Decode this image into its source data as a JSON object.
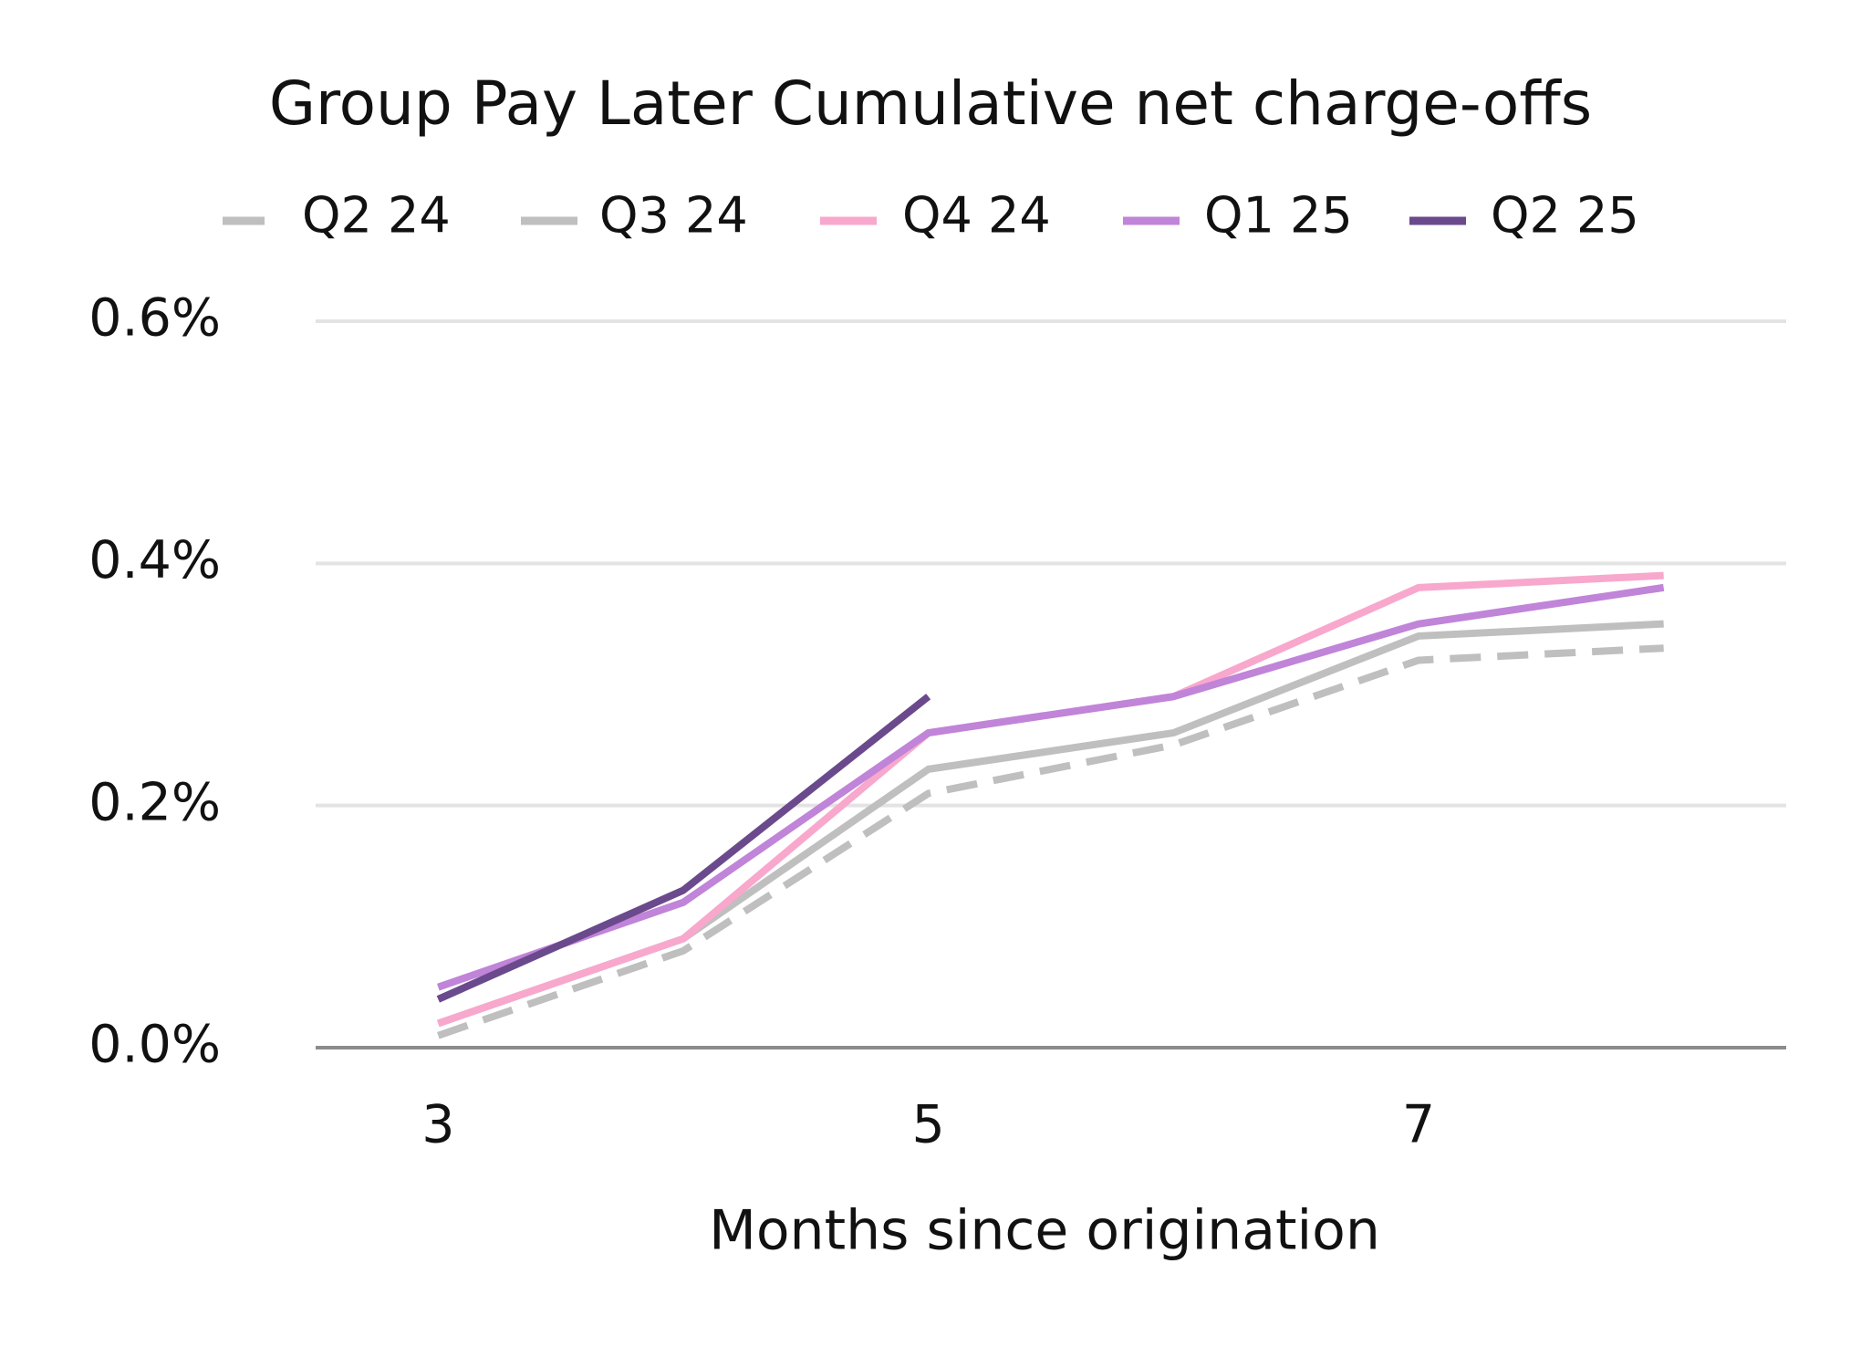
{
  "chart_data": {
    "type": "line",
    "title": "Group Pay Later Cumulative net charge-offs",
    "x_label": "Months since origination",
    "x": [
      3,
      4,
      5,
      6,
      7,
      8
    ],
    "xlim": [
      2.5,
      8.5
    ],
    "xticks": [
      3,
      5,
      7
    ],
    "ylim": [
      0,
      0.6
    ],
    "yticks": [
      {
        "value": 0,
        "label": "0.0%"
      },
      {
        "value": 0.2,
        "label": "0.2%"
      },
      {
        "value": 0.4,
        "label": "0.4%"
      },
      {
        "value": 0.6,
        "label": "0.6%"
      }
    ],
    "grid": true,
    "legend": "top",
    "series": [
      {
        "name": "Q2 24",
        "color": "#bfbfbf",
        "dash": true,
        "values": [
          0.01,
          0.08,
          0.21,
          0.25,
          0.32,
          0.33
        ]
      },
      {
        "name": "Q3 24",
        "color": "#bfbfbf",
        "values": [
          0.02,
          0.09,
          0.23,
          0.26,
          0.34,
          0.35
        ]
      },
      {
        "name": "Q4 24",
        "color": "#f8a8cc",
        "values": [
          0.02,
          0.09,
          0.26,
          0.29,
          0.38,
          0.39
        ]
      },
      {
        "name": "Q1 25",
        "color": "#c084d8",
        "values": [
          0.05,
          0.12,
          0.26,
          0.29,
          0.35,
          0.38
        ]
      },
      {
        "name": "Q2 25",
        "color": "#6a4a8c",
        "values": [
          0.04,
          0.13,
          0.29,
          null,
          null,
          null
        ]
      }
    ]
  }
}
